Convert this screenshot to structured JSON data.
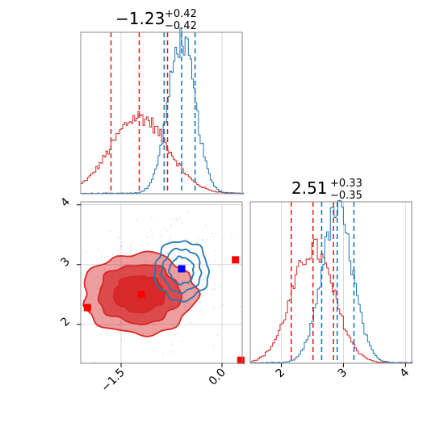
{
  "chart_data": [
    {
      "type": "histogram",
      "panel": "top-left",
      "title": {
        "value": "−1.23",
        "plus": "+0.42",
        "minus": "−0.42"
      },
      "xlim": [
        -2.1,
        0.3
      ],
      "bin_width": 0.025,
      "grid": true,
      "series": [
        {
          "name": "",
          "color": "#d62728",
          "distribution": "approx. normal",
          "center": -1.23,
          "sd": 0.42,
          "peak_density": 1.0,
          "quantile_lines": [
            -1.65,
            -1.23,
            -0.81
          ]
        },
        {
          "name": "",
          "color": "#1f77b4",
          "distribution": "approx. normal",
          "center": -0.6,
          "sd": 0.2,
          "peak_density": 2.0,
          "quantile_lines": [
            -0.86,
            -0.6,
            -0.4
          ]
        }
      ]
    },
    {
      "type": "histogram",
      "panel": "bottom-right",
      "title": {
        "value": "2.51",
        "plus": "+0.33",
        "minus": "−0.35"
      },
      "xlim": [
        1.5,
        4.1
      ],
      "xticks": [
        "2",
        "3",
        "4"
      ],
      "bin_width": 0.03,
      "grid": true,
      "series": [
        {
          "name": "",
          "color": "#d62728",
          "distribution": "approx. normal",
          "center": 2.51,
          "sd": 0.34,
          "peak_density": 1.2,
          "quantile_lines": [
            2.16,
            2.51,
            2.84
          ]
        },
        {
          "name": "",
          "color": "#1f77b4",
          "distribution": "approx. normal",
          "center": 2.9,
          "sd": 0.25,
          "peak_density": 1.6,
          "quantile_lines": [
            2.65,
            2.9,
            3.17
          ]
        }
      ]
    },
    {
      "type": "contour",
      "panel": "bottom-left",
      "xlim": [
        -2.1,
        0.3
      ],
      "ylim": [
        1.35,
        4.05
      ],
      "xticks": [
        "−1.5",
        "0.0"
      ],
      "yticks": [
        "2",
        "3",
        "4"
      ],
      "grid": true,
      "series": [
        {
          "name": "",
          "color": "#d62728",
          "filled": true,
          "center": [
            -1.23,
            2.51
          ],
          "spread": [
            0.42,
            0.34
          ],
          "scatter_points": 180
        },
        {
          "name": "",
          "color": "#1f77b4",
          "filled": false,
          "center": [
            -0.6,
            2.9
          ],
          "spread": [
            0.2,
            0.25
          ],
          "scatter_points": 120
        }
      ],
      "markers": [
        {
          "color": "#ff0000",
          "x": -1.2,
          "y": 2.5
        },
        {
          "color": "#ff0000",
          "x": -2.0,
          "y": 2.28
        },
        {
          "color": "#ff0000",
          "x": 0.2,
          "y": 3.08
        },
        {
          "color": "#ff0000",
          "x": 0.28,
          "y": 1.4
        },
        {
          "color": "#0000ff",
          "x": -0.6,
          "y": 2.93
        }
      ]
    }
  ]
}
